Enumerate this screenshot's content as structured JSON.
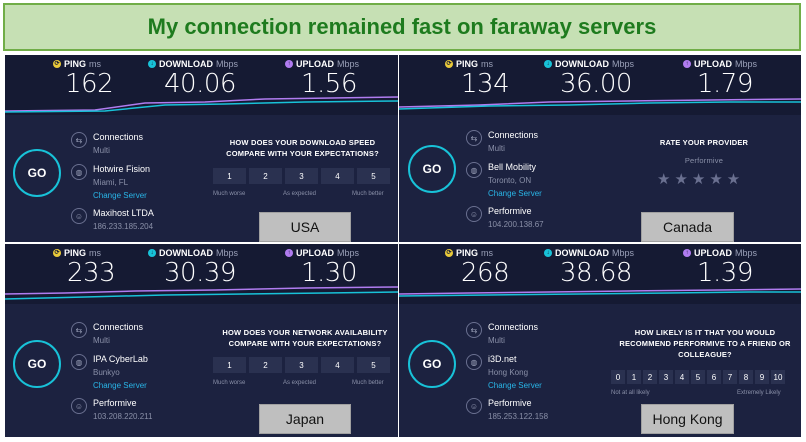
{
  "title": "My connection remained fast on faraway servers",
  "colors": {
    "ping": "#e8c93a",
    "download": "#18c2d8",
    "upload": "#b07cf0",
    "accent": "#18c2d8",
    "banner_bg": "#c6e0b4",
    "banner_text": "#1e7b1e"
  },
  "labels": {
    "ping": "PING",
    "ping_unit": "ms",
    "download": "DOWNLOAD",
    "download_unit": "Mbps",
    "upload": "UPLOAD",
    "upload_unit": "Mbps",
    "go": "GO",
    "connections": "Connections",
    "multi": "Multi",
    "change_server": "Change Server"
  },
  "icons": {
    "ping": "ping-icon",
    "download": "download-arrow-icon",
    "upload": "upload-arrow-icon",
    "connections": "connections-icon",
    "globe": "globe-icon",
    "user": "user-icon"
  },
  "panels": [
    {
      "ping": "162",
      "download": "40.06",
      "upload": "1.56",
      "isp": "Hotwire Fision",
      "isp_location": "Miami, FL",
      "server": "Maxihost LTDA",
      "ip": "186.233.185.204",
      "question": "HOW DOES YOUR DOWNLOAD SPEED COMPARE WITH YOUR EXPECTATIONS?",
      "scale": [
        "1",
        "2",
        "3",
        "4",
        "5"
      ],
      "scale_left": "Much worse",
      "scale_mid": "As expected",
      "scale_right": "Much better",
      "country": "USA"
    },
    {
      "ping": "134",
      "download": "36.00",
      "upload": "1.79",
      "isp": "Bell Mobility",
      "isp_location": "Toronto, ON",
      "server": "Performive",
      "ip": "104.200.138.67",
      "question": "RATE YOUR PROVIDER",
      "provider": "Performive",
      "stars": "★★★★★",
      "country": "Canada"
    },
    {
      "ping": "233",
      "download": "30.39",
      "upload": "1.30",
      "isp": "IPA CyberLab",
      "isp_location": "Bunkyo",
      "server": "Performive",
      "ip": "103.208.220.211",
      "question": "HOW DOES YOUR NETWORK AVAILABILITY COMPARE WITH YOUR EXPECTATIONS?",
      "scale": [
        "1",
        "2",
        "3",
        "4",
        "5"
      ],
      "scale_left": "Much worse",
      "scale_mid": "As expected",
      "scale_right": "Much better",
      "country": "Japan"
    },
    {
      "ping": "268",
      "download": "38.68",
      "upload": "1.39",
      "isp": "i3D.net",
      "isp_location": "Hong Kong",
      "server": "Performive",
      "ip": "185.253.122.158",
      "question": "HOW LIKELY IS IT THAT YOU WOULD RECOMMEND PERFORMIVE TO A FRIEND OR COLLEAGUE?",
      "scale": [
        "0",
        "1",
        "2",
        "3",
        "4",
        "5",
        "6",
        "7",
        "8",
        "9",
        "10"
      ],
      "scale_left": "Not at all likely",
      "scale_right": "Extremely Likely",
      "country": "Hong Kong"
    }
  ]
}
